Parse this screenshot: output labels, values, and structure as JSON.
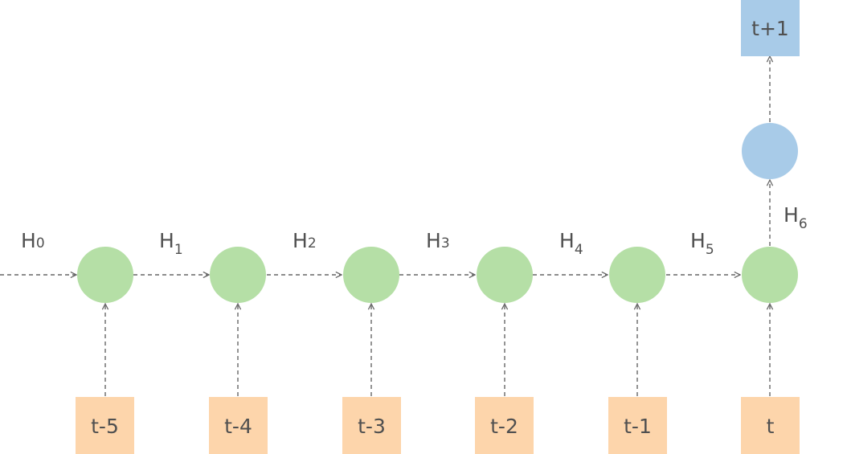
{
  "diagram": {
    "type": "unrolled-rnn",
    "colors": {
      "input_box": "#fdd5ab",
      "hidden_node": "#b5dfa6",
      "output_node": "#a8cbe8",
      "output_box": "#a8cbe8",
      "arrow": "#666666",
      "text": "#505050"
    },
    "inputs": [
      "t-5",
      "t-4",
      "t-3",
      "t-2",
      "t-1",
      "t"
    ],
    "output": "t+1",
    "hidden_states": [
      {
        "base": "H",
        "sub": "0"
      },
      {
        "base": "H",
        "sub": "1"
      },
      {
        "base": "H",
        "sub": "2"
      },
      {
        "base": "H",
        "sub": "3"
      },
      {
        "base": "H",
        "sub": "4"
      },
      {
        "base": "H",
        "sub": "5"
      },
      {
        "base": "H",
        "sub": "6"
      }
    ]
  }
}
